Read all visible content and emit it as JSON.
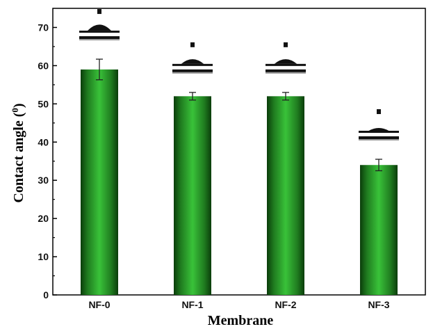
{
  "chart_data": {
    "type": "bar",
    "categories": [
      "NF-0",
      "NF-1",
      "NF-2",
      "NF-3"
    ],
    "series": [
      {
        "values": [
          59,
          52,
          52,
          34
        ],
        "errors": [
          2.7,
          1.0,
          1.0,
          1.5
        ],
        "color": "#2eaa2e"
      }
    ],
    "xlabel": "Membrane",
    "ylabel": "Contact angle (",
    "ylabel_sup": "0",
    "ylabel_close": ")",
    "ylim": [
      0,
      75
    ],
    "yticks": [
      0,
      10,
      20,
      30,
      40,
      50,
      60,
      70
    ],
    "grid": false,
    "annotations": "water droplet contact-angle images shown above each bar"
  }
}
